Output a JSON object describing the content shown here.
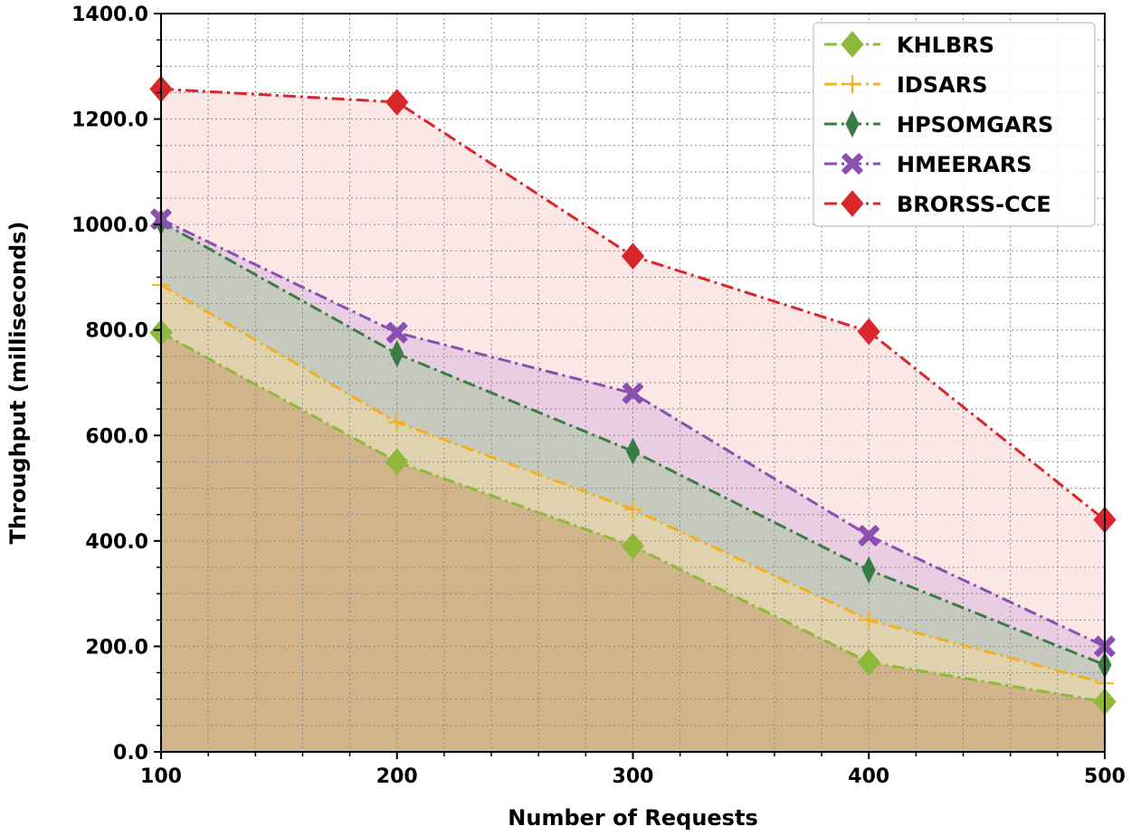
{
  "chart_data": {
    "type": "line",
    "xlabel": "Number of Requests",
    "ylabel": "Throughput (milliseconds)",
    "x": [
      100,
      200,
      300,
      400,
      500
    ],
    "xticks": [
      "100",
      "200",
      "300",
      "400",
      "500"
    ],
    "yticks": [
      "0.0",
      "200.0",
      "400.0",
      "600.0",
      "800.0",
      "1000.0",
      "1200.0",
      "1400.0"
    ],
    "xlim": [
      100,
      500
    ],
    "ylim": [
      0,
      1400
    ],
    "grid": true,
    "filled_areas": true,
    "legend_position": "top-right",
    "series": [
      {
        "name": "KHLBRS",
        "values": [
          795,
          550,
          390,
          170,
          95
        ],
        "color": "#8db83a",
        "marker": "diamond",
        "linestyle": "dash-dot",
        "fill": "#c49a6c"
      },
      {
        "name": "IDSARS",
        "values": [
          885,
          625,
          460,
          250,
          130
        ],
        "color": "#f2b01e",
        "marker": "plus",
        "linestyle": "dash-dot",
        "fill": "#f7d9a0"
      },
      {
        "name": "HPSOMGARS",
        "values": [
          1005,
          755,
          570,
          345,
          165
        ],
        "color": "#3a7d44",
        "marker": "thin-diamond",
        "linestyle": "dash-dot",
        "fill": "#a9c9a0"
      },
      {
        "name": "HMEERARS",
        "values": [
          1010,
          795,
          680,
          410,
          200
        ],
        "color": "#8a4fb0",
        "marker": "x",
        "linestyle": "dash-dot",
        "fill": "#d9b8e0"
      },
      {
        "name": "BRORSS-CCE",
        "values": [
          1257,
          1232,
          940,
          797,
          440
        ],
        "color": "#d9262b",
        "marker": "diamond",
        "linestyle": "dash-dot",
        "fill": "#f9d3d3"
      }
    ]
  }
}
